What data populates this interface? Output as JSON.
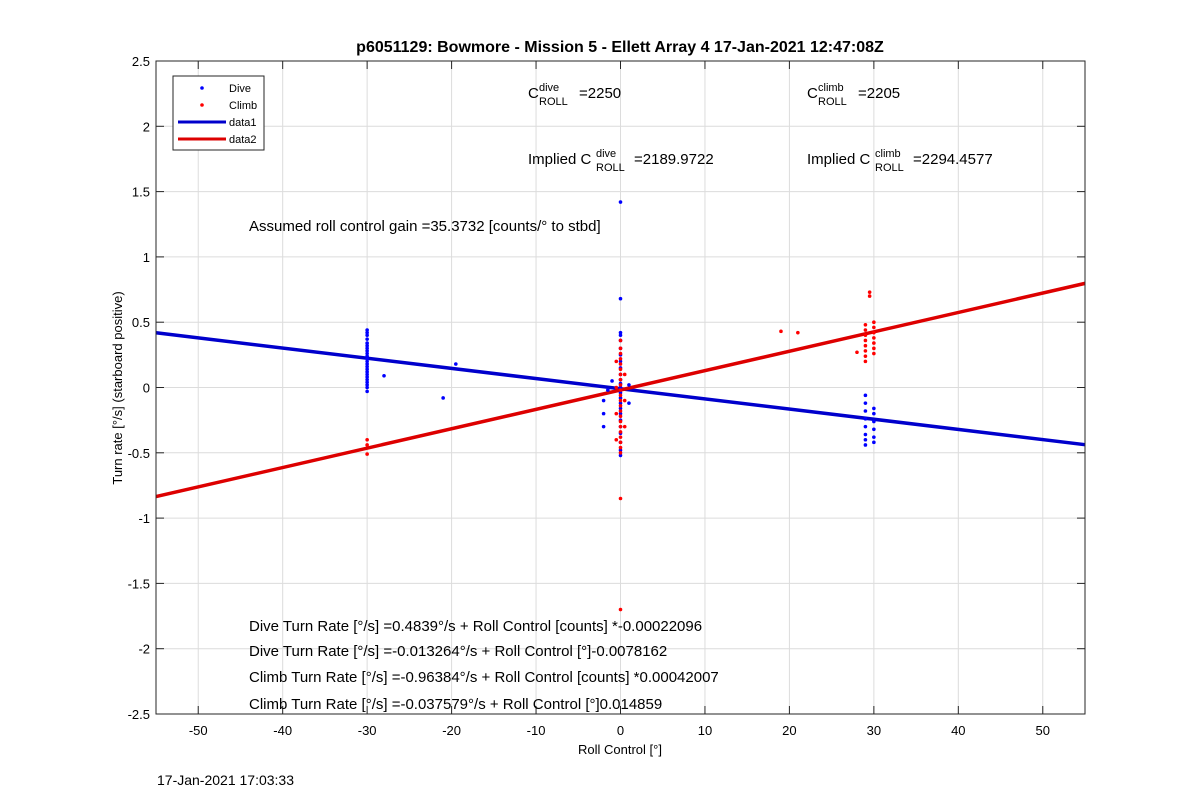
{
  "chart_data": {
    "type": "scatter",
    "title": "p6051129: Bowmore - Mission 5 - Ellett Array 4 17-Jan-2021 12:47:08Z",
    "xlabel": "Roll Control [°]",
    "ylabel": "Turn rate [°/s] (starboard positive)",
    "xlim": [
      -55,
      55
    ],
    "ylim": [
      -2.5,
      2.5
    ],
    "x_ticks": [
      -50,
      -40,
      -30,
      -20,
      -10,
      0,
      10,
      20,
      30,
      40,
      50
    ],
    "y_ticks": [
      -2.5,
      -2,
      -1.5,
      -1,
      -0.5,
      0,
      0.5,
      1,
      1.5,
      2,
      2.5
    ],
    "grid": true,
    "legend_position": "top-left",
    "series": [
      {
        "name": "Dive",
        "kind": "points",
        "color": "#0000ff",
        "points": [
          [
            -30,
            0.44
          ],
          [
            -30,
            0.42
          ],
          [
            -30,
            0.4
          ],
          [
            -30,
            0.37
          ],
          [
            -30,
            0.34
          ],
          [
            -30,
            0.32
          ],
          [
            -30,
            0.3
          ],
          [
            -30,
            0.28
          ],
          [
            -30,
            0.26
          ],
          [
            -30,
            0.24
          ],
          [
            -30,
            0.22
          ],
          [
            -30,
            0.2
          ],
          [
            -30,
            0.18
          ],
          [
            -30,
            0.16
          ],
          [
            -30,
            0.14
          ],
          [
            -30,
            0.12
          ],
          [
            -30,
            0.1
          ],
          [
            -30,
            0.08
          ],
          [
            -30,
            0.06
          ],
          [
            -30,
            0.04
          ],
          [
            -30,
            0.02
          ],
          [
            -30,
            0.0
          ],
          [
            -30,
            -0.03
          ],
          [
            -28,
            0.09
          ],
          [
            -21,
            -0.08
          ],
          [
            -19.5,
            0.18
          ],
          [
            0,
            1.42
          ],
          [
            0,
            0.68
          ],
          [
            0,
            0.42
          ],
          [
            0,
            0.4
          ],
          [
            0,
            0.36
          ],
          [
            0,
            0.3
          ],
          [
            0,
            0.25
          ],
          [
            0,
            0.2
          ],
          [
            0,
            0.15
          ],
          [
            0,
            0.1
          ],
          [
            0,
            0.06
          ],
          [
            0,
            0.03
          ],
          [
            0,
            0.0
          ],
          [
            0,
            -0.04
          ],
          [
            0,
            -0.08
          ],
          [
            0,
            -0.12
          ],
          [
            0,
            -0.16
          ],
          [
            0,
            -0.2
          ],
          [
            0,
            -0.25
          ],
          [
            0,
            -0.3
          ],
          [
            0,
            -0.35
          ],
          [
            0,
            -0.42
          ],
          [
            0,
            -0.48
          ],
          [
            0,
            -0.52
          ],
          [
            -1,
            0.05
          ],
          [
            -1.5,
            -0.02
          ],
          [
            -2,
            -0.1
          ],
          [
            -2,
            -0.2
          ],
          [
            -2,
            -0.3
          ],
          [
            1,
            0.02
          ],
          [
            1,
            -0.12
          ],
          [
            29,
            -0.06
          ],
          [
            29,
            -0.12
          ],
          [
            29,
            -0.18
          ],
          [
            29,
            -0.24
          ],
          [
            29,
            -0.3
          ],
          [
            29,
            -0.36
          ],
          [
            29,
            -0.4
          ],
          [
            29,
            -0.44
          ],
          [
            30,
            -0.16
          ],
          [
            30,
            -0.2
          ],
          [
            30,
            -0.26
          ],
          [
            30,
            -0.32
          ],
          [
            30,
            -0.38
          ],
          [
            30,
            -0.42
          ]
        ]
      },
      {
        "name": "Climb",
        "kind": "points",
        "color": "#ff0000",
        "points": [
          [
            -30,
            -0.4
          ],
          [
            -30,
            -0.44
          ],
          [
            -30,
            -0.51
          ],
          [
            0,
            0.36
          ],
          [
            0,
            0.3
          ],
          [
            0,
            0.26
          ],
          [
            0,
            0.22
          ],
          [
            0,
            0.18
          ],
          [
            0,
            0.14
          ],
          [
            0,
            0.1
          ],
          [
            0,
            0.06
          ],
          [
            0,
            0.02
          ],
          [
            0,
            -0.02
          ],
          [
            0,
            -0.06
          ],
          [
            0,
            -0.1
          ],
          [
            0,
            -0.14
          ],
          [
            0,
            -0.18
          ],
          [
            0,
            -0.22
          ],
          [
            0,
            -0.26
          ],
          [
            0,
            -0.3
          ],
          [
            0,
            -0.34
          ],
          [
            0,
            -0.38
          ],
          [
            0,
            -0.42
          ],
          [
            0,
            -0.46
          ],
          [
            0,
            -0.5
          ],
          [
            0,
            -0.85
          ],
          [
            0,
            -1.7
          ],
          [
            -0.5,
            0.2
          ],
          [
            -0.5,
            0.0
          ],
          [
            -0.5,
            -0.2
          ],
          [
            -0.5,
            -0.4
          ],
          [
            0.5,
            0.1
          ],
          [
            0.5,
            -0.1
          ],
          [
            0.5,
            -0.3
          ],
          [
            19,
            0.43
          ],
          [
            21,
            0.42
          ],
          [
            28,
            0.27
          ],
          [
            29,
            0.48
          ],
          [
            29,
            0.44
          ],
          [
            29,
            0.4
          ],
          [
            29,
            0.36
          ],
          [
            29,
            0.32
          ],
          [
            29,
            0.28
          ],
          [
            29,
            0.24
          ],
          [
            29,
            0.2
          ],
          [
            29.5,
            0.73
          ],
          [
            29.5,
            0.7
          ],
          [
            30,
            0.5
          ],
          [
            30,
            0.46
          ],
          [
            30,
            0.42
          ],
          [
            30,
            0.38
          ],
          [
            30,
            0.34
          ],
          [
            30,
            0.3
          ],
          [
            30,
            0.26
          ]
        ]
      },
      {
        "name": "data1",
        "kind": "line",
        "color": "#0000cc",
        "points": [
          [
            -55,
            0.4189
          ],
          [
            55,
            -0.4378
          ]
        ]
      },
      {
        "name": "data2",
        "kind": "line",
        "color": "#dd0000",
        "points": [
          [
            -55,
            -0.8354
          ],
          [
            55,
            0.7972
          ]
        ]
      }
    ],
    "annotations": {
      "c_roll_dive": "=2250",
      "c_roll_climb": "=2205",
      "implied_c_roll_dive": "=2189.9722",
      "implied_c_roll_climb": "=2294.4577",
      "implied_prefix": "Implied C",
      "c_symbol": "C",
      "sup_dive": "dive",
      "sup_climb": "climb",
      "sub_roll": "ROLL",
      "assumed_gain": "Assumed roll control gain =35.3732 [counts/° to stbd]",
      "fits": [
        "Dive Turn Rate [°/s] =0.4839°/s + Roll Control [counts] *-0.00022096",
        "Dive Turn Rate [°/s] =-0.013264°/s + Roll Control [°]-0.0078162",
        "Climb Turn Rate [°/s] =-0.96384°/s + Roll Control [counts] *0.00042007",
        "Climb Turn Rate [°/s] =-0.037579°/s + Roll Control [°]0.014859"
      ]
    }
  },
  "footer": {
    "timestamp": "17-Jan-2021 17:03:33"
  }
}
